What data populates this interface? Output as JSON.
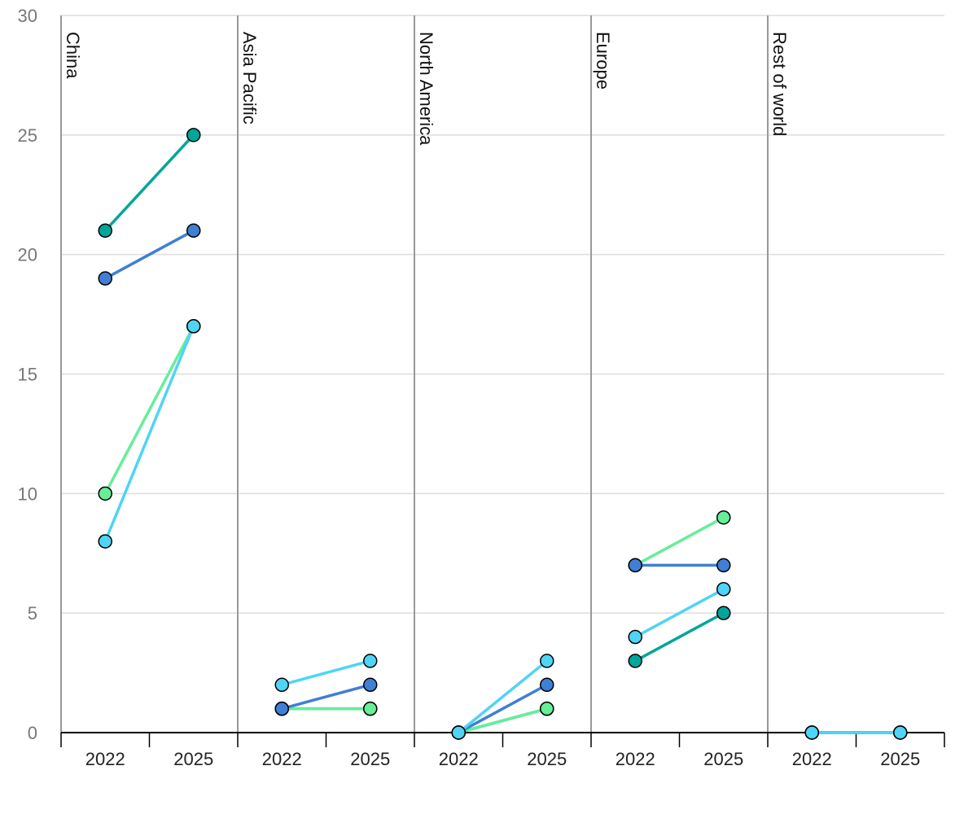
{
  "chart_data": {
    "type": "line",
    "title": "",
    "xlabel": "",
    "ylabel": "",
    "ylim": [
      0,
      30
    ],
    "yticks": [
      0,
      5,
      10,
      15,
      20,
      25,
      30
    ],
    "grid": true,
    "legend": "none",
    "x": [
      "2022",
      "2025"
    ],
    "panels": [
      {
        "name": "China",
        "series": [
          {
            "color": "#00a699",
            "values": [
              21,
              25
            ]
          },
          {
            "color": "#3f7fd4",
            "values": [
              19,
              21
            ]
          },
          {
            "color": "#66ee99",
            "values": [
              10,
              17
            ]
          },
          {
            "color": "#4fd4f5",
            "values": [
              8,
              17
            ]
          }
        ]
      },
      {
        "name": "Asia Pacific",
        "series": [
          {
            "color": "#00a699",
            "values": [
              1,
              1
            ]
          },
          {
            "color": "#66ee99",
            "values": [
              1,
              1
            ]
          },
          {
            "color": "#3f7fd4",
            "values": [
              1,
              2
            ]
          },
          {
            "color": "#4fd4f5",
            "values": [
              2,
              3
            ]
          }
        ]
      },
      {
        "name": "North America",
        "series": [
          {
            "color": "#00a699",
            "values": [
              0,
              1
            ]
          },
          {
            "color": "#66ee99",
            "values": [
              0,
              1
            ]
          },
          {
            "color": "#3f7fd4",
            "values": [
              0,
              2
            ]
          },
          {
            "color": "#4fd4f5",
            "values": [
              0,
              3
            ]
          }
        ]
      },
      {
        "name": "Europe",
        "series": [
          {
            "color": "#66ee99",
            "values": [
              7,
              9
            ]
          },
          {
            "color": "#3f7fd4",
            "values": [
              7,
              7
            ]
          },
          {
            "color": "#4fd4f5",
            "values": [
              4,
              6
            ]
          },
          {
            "color": "#00a699",
            "values": [
              3,
              5
            ]
          }
        ]
      },
      {
        "name": "Rest of world",
        "series": [
          {
            "color": "#00a699",
            "values": [
              0,
              0
            ]
          },
          {
            "color": "#66ee99",
            "values": [
              0,
              0
            ]
          },
          {
            "color": "#3f7fd4",
            "values": [
              0,
              0
            ]
          },
          {
            "color": "#4fd4f5",
            "values": [
              0,
              0
            ]
          }
        ]
      }
    ]
  }
}
